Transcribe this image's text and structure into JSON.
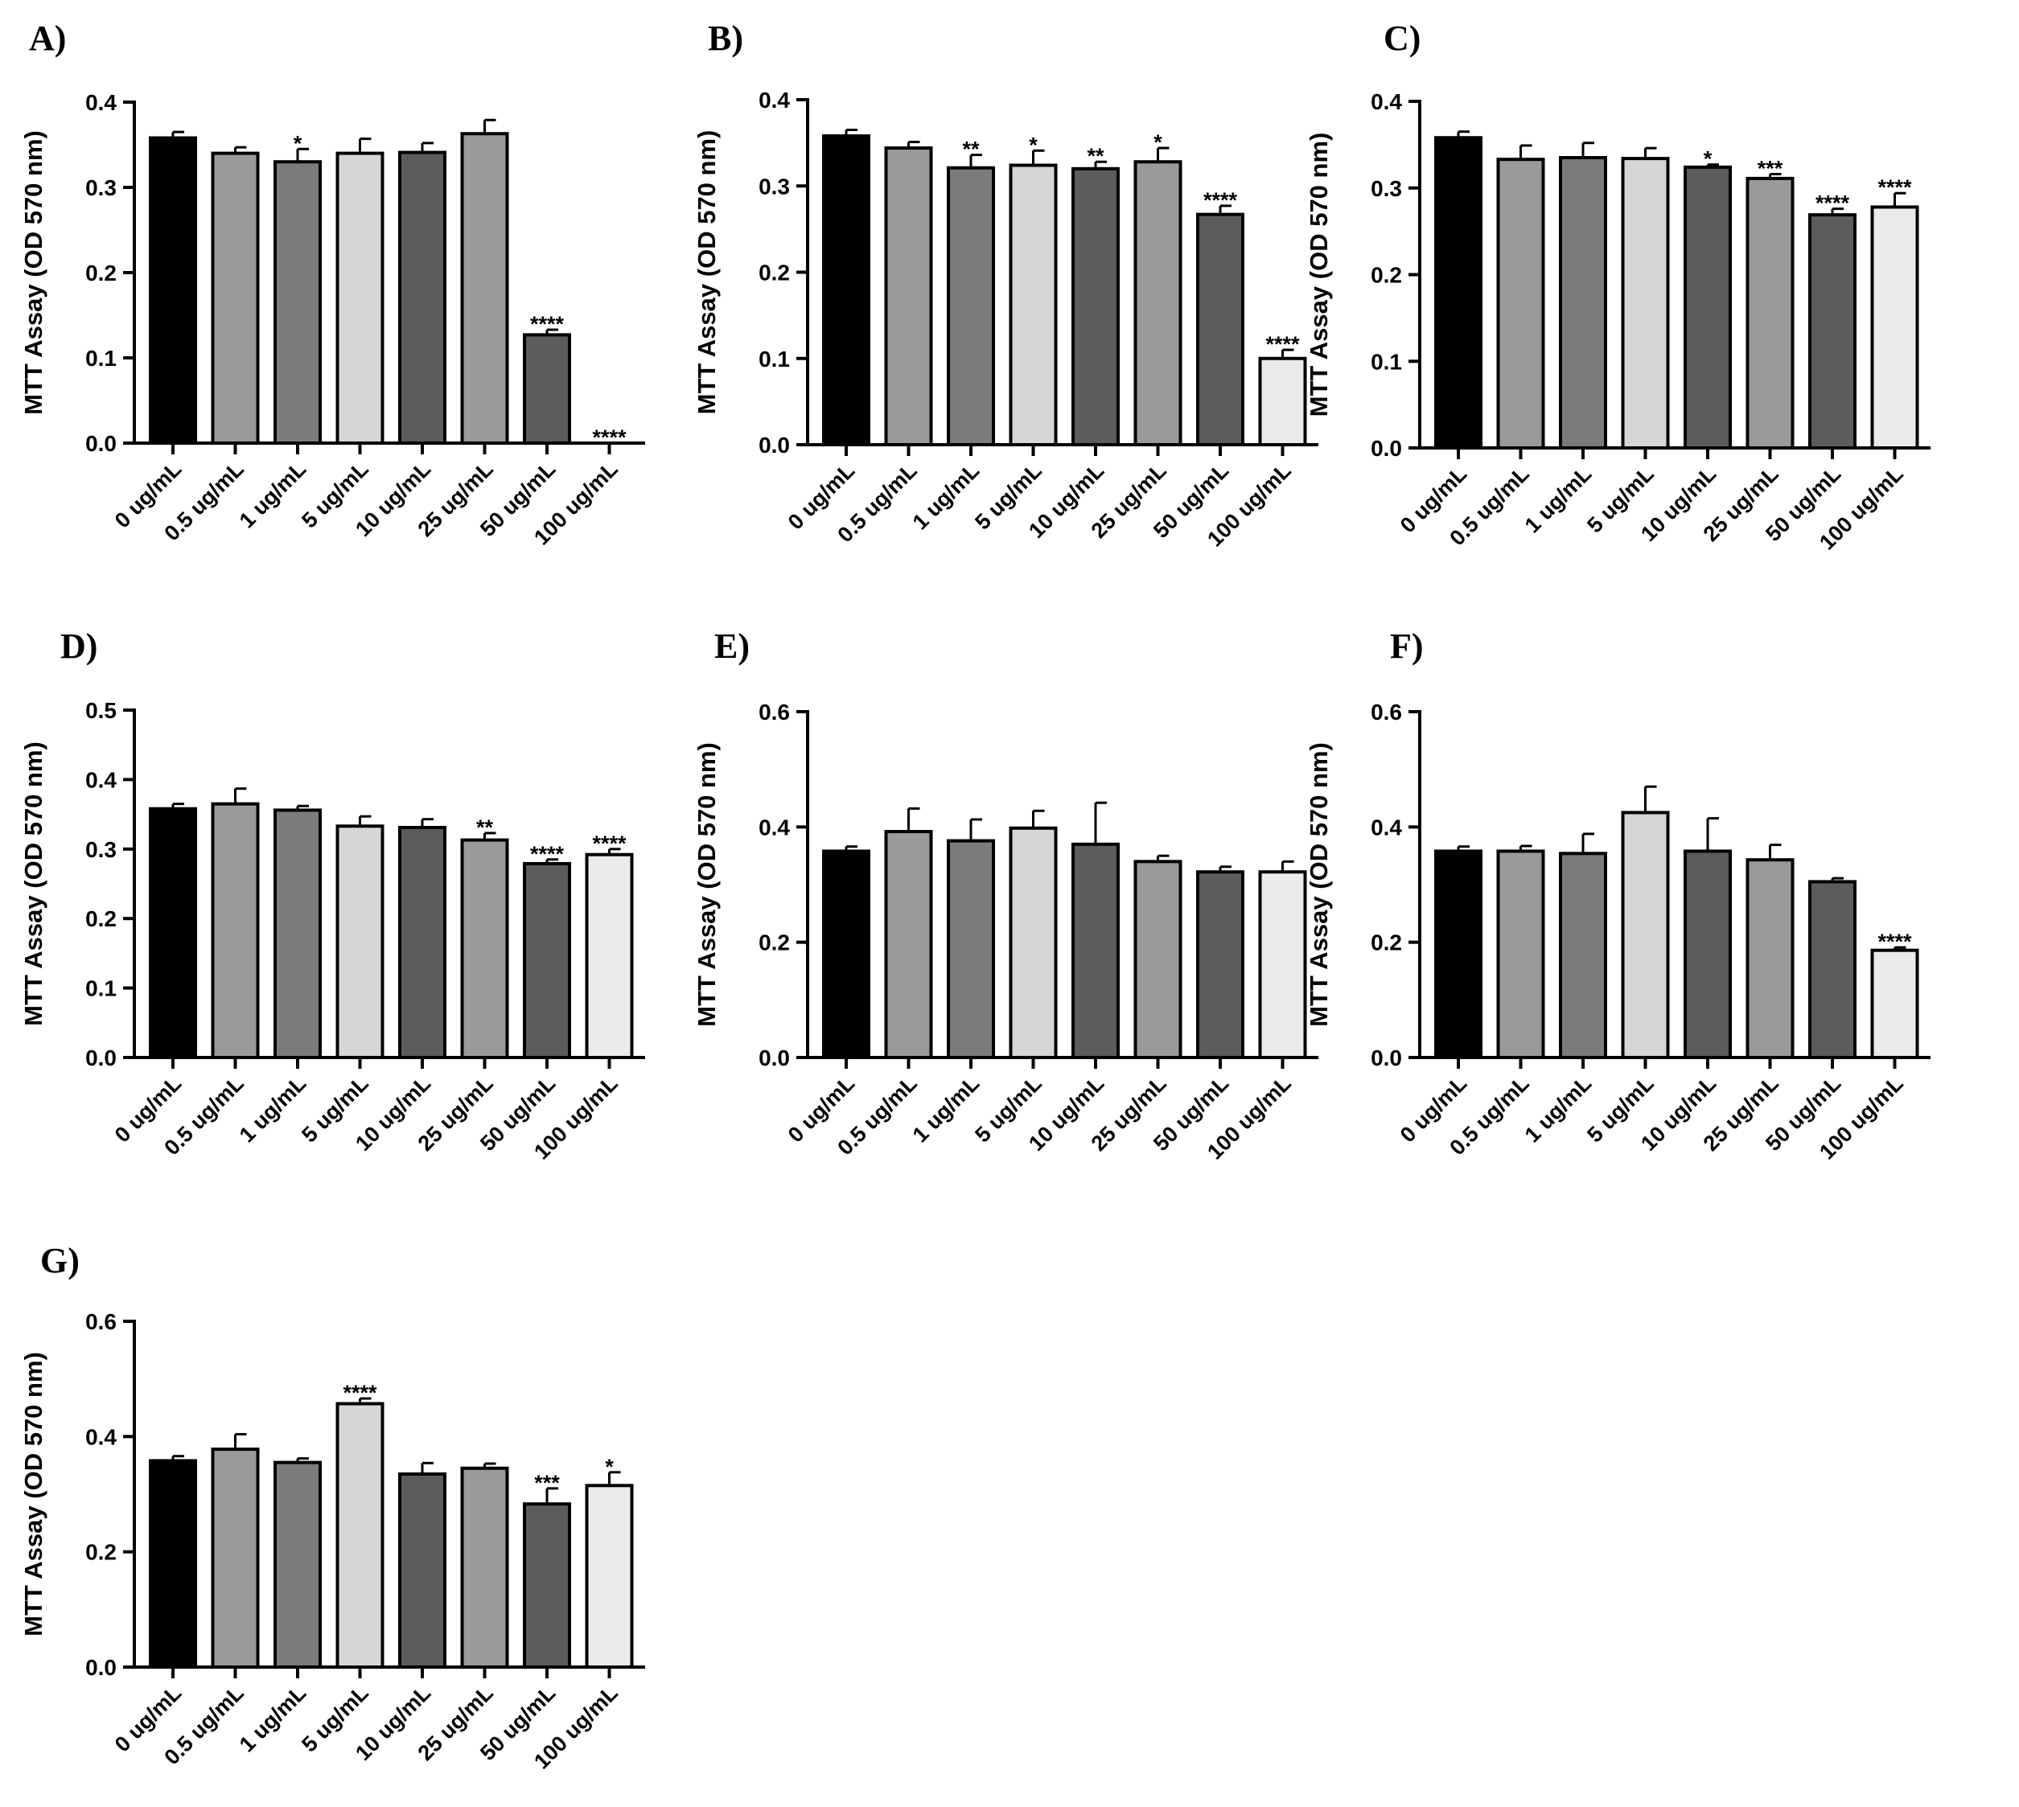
{
  "chart_data": [
    {
      "panel": "A)",
      "type": "bar",
      "ylabel": "MTT Assay (OD 570 nm)",
      "categories": [
        "0 ug/mL",
        "0.5 ug/mL",
        "1 ug/mL",
        "5 ug/mL",
        "10 ug/mL",
        "25 ug/mL",
        "50 ug/mL",
        "100 ug/mL"
      ],
      "values": [
        0.358,
        0.34,
        0.33,
        0.34,
        0.341,
        0.363,
        0.127,
        0.0
      ],
      "errors": [
        0.007,
        0.007,
        0.015,
        0.017,
        0.011,
        0.016,
        0.006,
        0.0
      ],
      "significance": [
        "",
        "",
        "*",
        "",
        "",
        "",
        "****",
        "****"
      ],
      "ylim": [
        0,
        0.4
      ],
      "yticks": [
        "0.0",
        "0.1",
        "0.2",
        "0.3",
        "0.4"
      ]
    },
    {
      "panel": "B)",
      "type": "bar",
      "ylabel": "MTT Assay (OD 570 nm)",
      "categories": [
        "0 ug/mL",
        "0.5 ug/mL",
        "1 ug/mL",
        "5 ug/mL",
        "10 ug/mL",
        "25 ug/mL",
        "50 ug/mL",
        "100 ug/mL"
      ],
      "values": [
        0.358,
        0.344,
        0.321,
        0.324,
        0.32,
        0.328,
        0.267,
        0.1
      ],
      "errors": [
        0.007,
        0.007,
        0.015,
        0.017,
        0.008,
        0.016,
        0.01,
        0.01
      ],
      "significance": [
        "",
        "",
        "**",
        "*",
        "**",
        "*",
        "****",
        "****"
      ],
      "ylim": [
        0,
        0.4
      ],
      "yticks": [
        "0.0",
        "0.1",
        "0.2",
        "0.3",
        "0.4"
      ]
    },
    {
      "panel": "C)",
      "type": "bar",
      "ylabel": "MTT Assay (OD 570 nm)",
      "categories": [
        "0 ug/mL",
        "0.5 ug/mL",
        "1 ug/mL",
        "5 ug/mL",
        "10 ug/mL",
        "25 ug/mL",
        "50 ug/mL",
        "100 ug/mL"
      ],
      "values": [
        0.358,
        0.333,
        0.335,
        0.334,
        0.324,
        0.311,
        0.269,
        0.278
      ],
      "errors": [
        0.007,
        0.016,
        0.017,
        0.012,
        0.003,
        0.005,
        0.007,
        0.016
      ],
      "significance": [
        "",
        "",
        "",
        "",
        "*",
        "***",
        "****",
        "****"
      ],
      "ylim": [
        0,
        0.4
      ],
      "yticks": [
        "0.0",
        "0.1",
        "0.2",
        "0.3",
        "0.4"
      ]
    },
    {
      "panel": "D)",
      "type": "bar",
      "ylabel": "MTT Assay (OD 570 nm)",
      "categories": [
        "0 ug/mL",
        "0.5 ug/mL",
        "1 ug/mL",
        "5 ug/mL",
        "10 ug/mL",
        "25 ug/mL",
        "50 ug/mL",
        "100 ug/mL"
      ],
      "values": [
        0.358,
        0.365,
        0.356,
        0.333,
        0.331,
        0.313,
        0.279,
        0.292
      ],
      "errors": [
        0.007,
        0.022,
        0.006,
        0.014,
        0.012,
        0.01,
        0.006,
        0.008
      ],
      "significance": [
        "",
        "",
        "",
        "",
        "",
        "**",
        "****",
        "****"
      ],
      "ylim": [
        0,
        0.5
      ],
      "yticks": [
        "0.0",
        "0.1",
        "0.2",
        "0.3",
        "0.4",
        "0.5"
      ]
    },
    {
      "panel": "E)",
      "type": "bar",
      "ylabel": "MTT Assay (OD 570 nm)",
      "categories": [
        "0 ug/mL",
        "0.5 ug/mL",
        "1 ug/mL",
        "5 ug/mL",
        "10 ug/mL",
        "25 ug/mL",
        "50 ug/mL",
        "100 ug/mL"
      ],
      "values": [
        0.358,
        0.392,
        0.376,
        0.398,
        0.37,
        0.34,
        0.322,
        0.322
      ],
      "errors": [
        0.008,
        0.04,
        0.037,
        0.03,
        0.072,
        0.01,
        0.009,
        0.018
      ],
      "significance": [
        "",
        "",
        "",
        "",
        "",
        "",
        "",
        ""
      ],
      "ylim": [
        0,
        0.6
      ],
      "yticks": [
        "0.0",
        "0.2",
        "0.4",
        "0.6"
      ]
    },
    {
      "panel": "F)",
      "type": "bar",
      "ylabel": "MTT Assay (OD 570 nm)",
      "categories": [
        "0 ug/mL",
        "0.5 ug/mL",
        "1 ug/mL",
        "5 ug/mL",
        "10 ug/mL",
        "25 ug/mL",
        "50 ug/mL",
        "100 ug/mL"
      ],
      "values": [
        0.358,
        0.358,
        0.354,
        0.425,
        0.358,
        0.343,
        0.305,
        0.186
      ],
      "errors": [
        0.008,
        0.009,
        0.034,
        0.045,
        0.057,
        0.026,
        0.006,
        0.005
      ],
      "significance": [
        "",
        "",
        "",
        "",
        "",
        "",
        "",
        "****"
      ],
      "ylim": [
        0,
        0.6
      ],
      "yticks": [
        "0.0",
        "0.2",
        "0.4",
        "0.6"
      ]
    },
    {
      "panel": "G)",
      "type": "bar",
      "ylabel": "MTT Assay (OD 570 nm)",
      "categories": [
        "0 ug/mL",
        "0.5 ug/mL",
        "1 ug/mL",
        "5 ug/mL",
        "10 ug/mL",
        "25 ug/mL",
        "50 ug/mL",
        "100 ug/mL"
      ],
      "values": [
        0.358,
        0.378,
        0.355,
        0.457,
        0.335,
        0.345,
        0.283,
        0.315
      ],
      "errors": [
        0.008,
        0.026,
        0.007,
        0.009,
        0.019,
        0.008,
        0.027,
        0.023
      ],
      "significance": [
        "",
        "",
        "",
        "****",
        "",
        "",
        "***",
        "*"
      ],
      "ylim": [
        0,
        0.6
      ],
      "yticks": [
        "0.0",
        "0.2",
        "0.4",
        "0.6"
      ]
    }
  ],
  "bar_colors": [
    "#000000",
    "#9a9a9a",
    "#7b7b7b",
    "#d6d6d6",
    "#5c5c5c",
    "#9a9a9a",
    "#5c5c5c",
    "#ebebeb"
  ]
}
